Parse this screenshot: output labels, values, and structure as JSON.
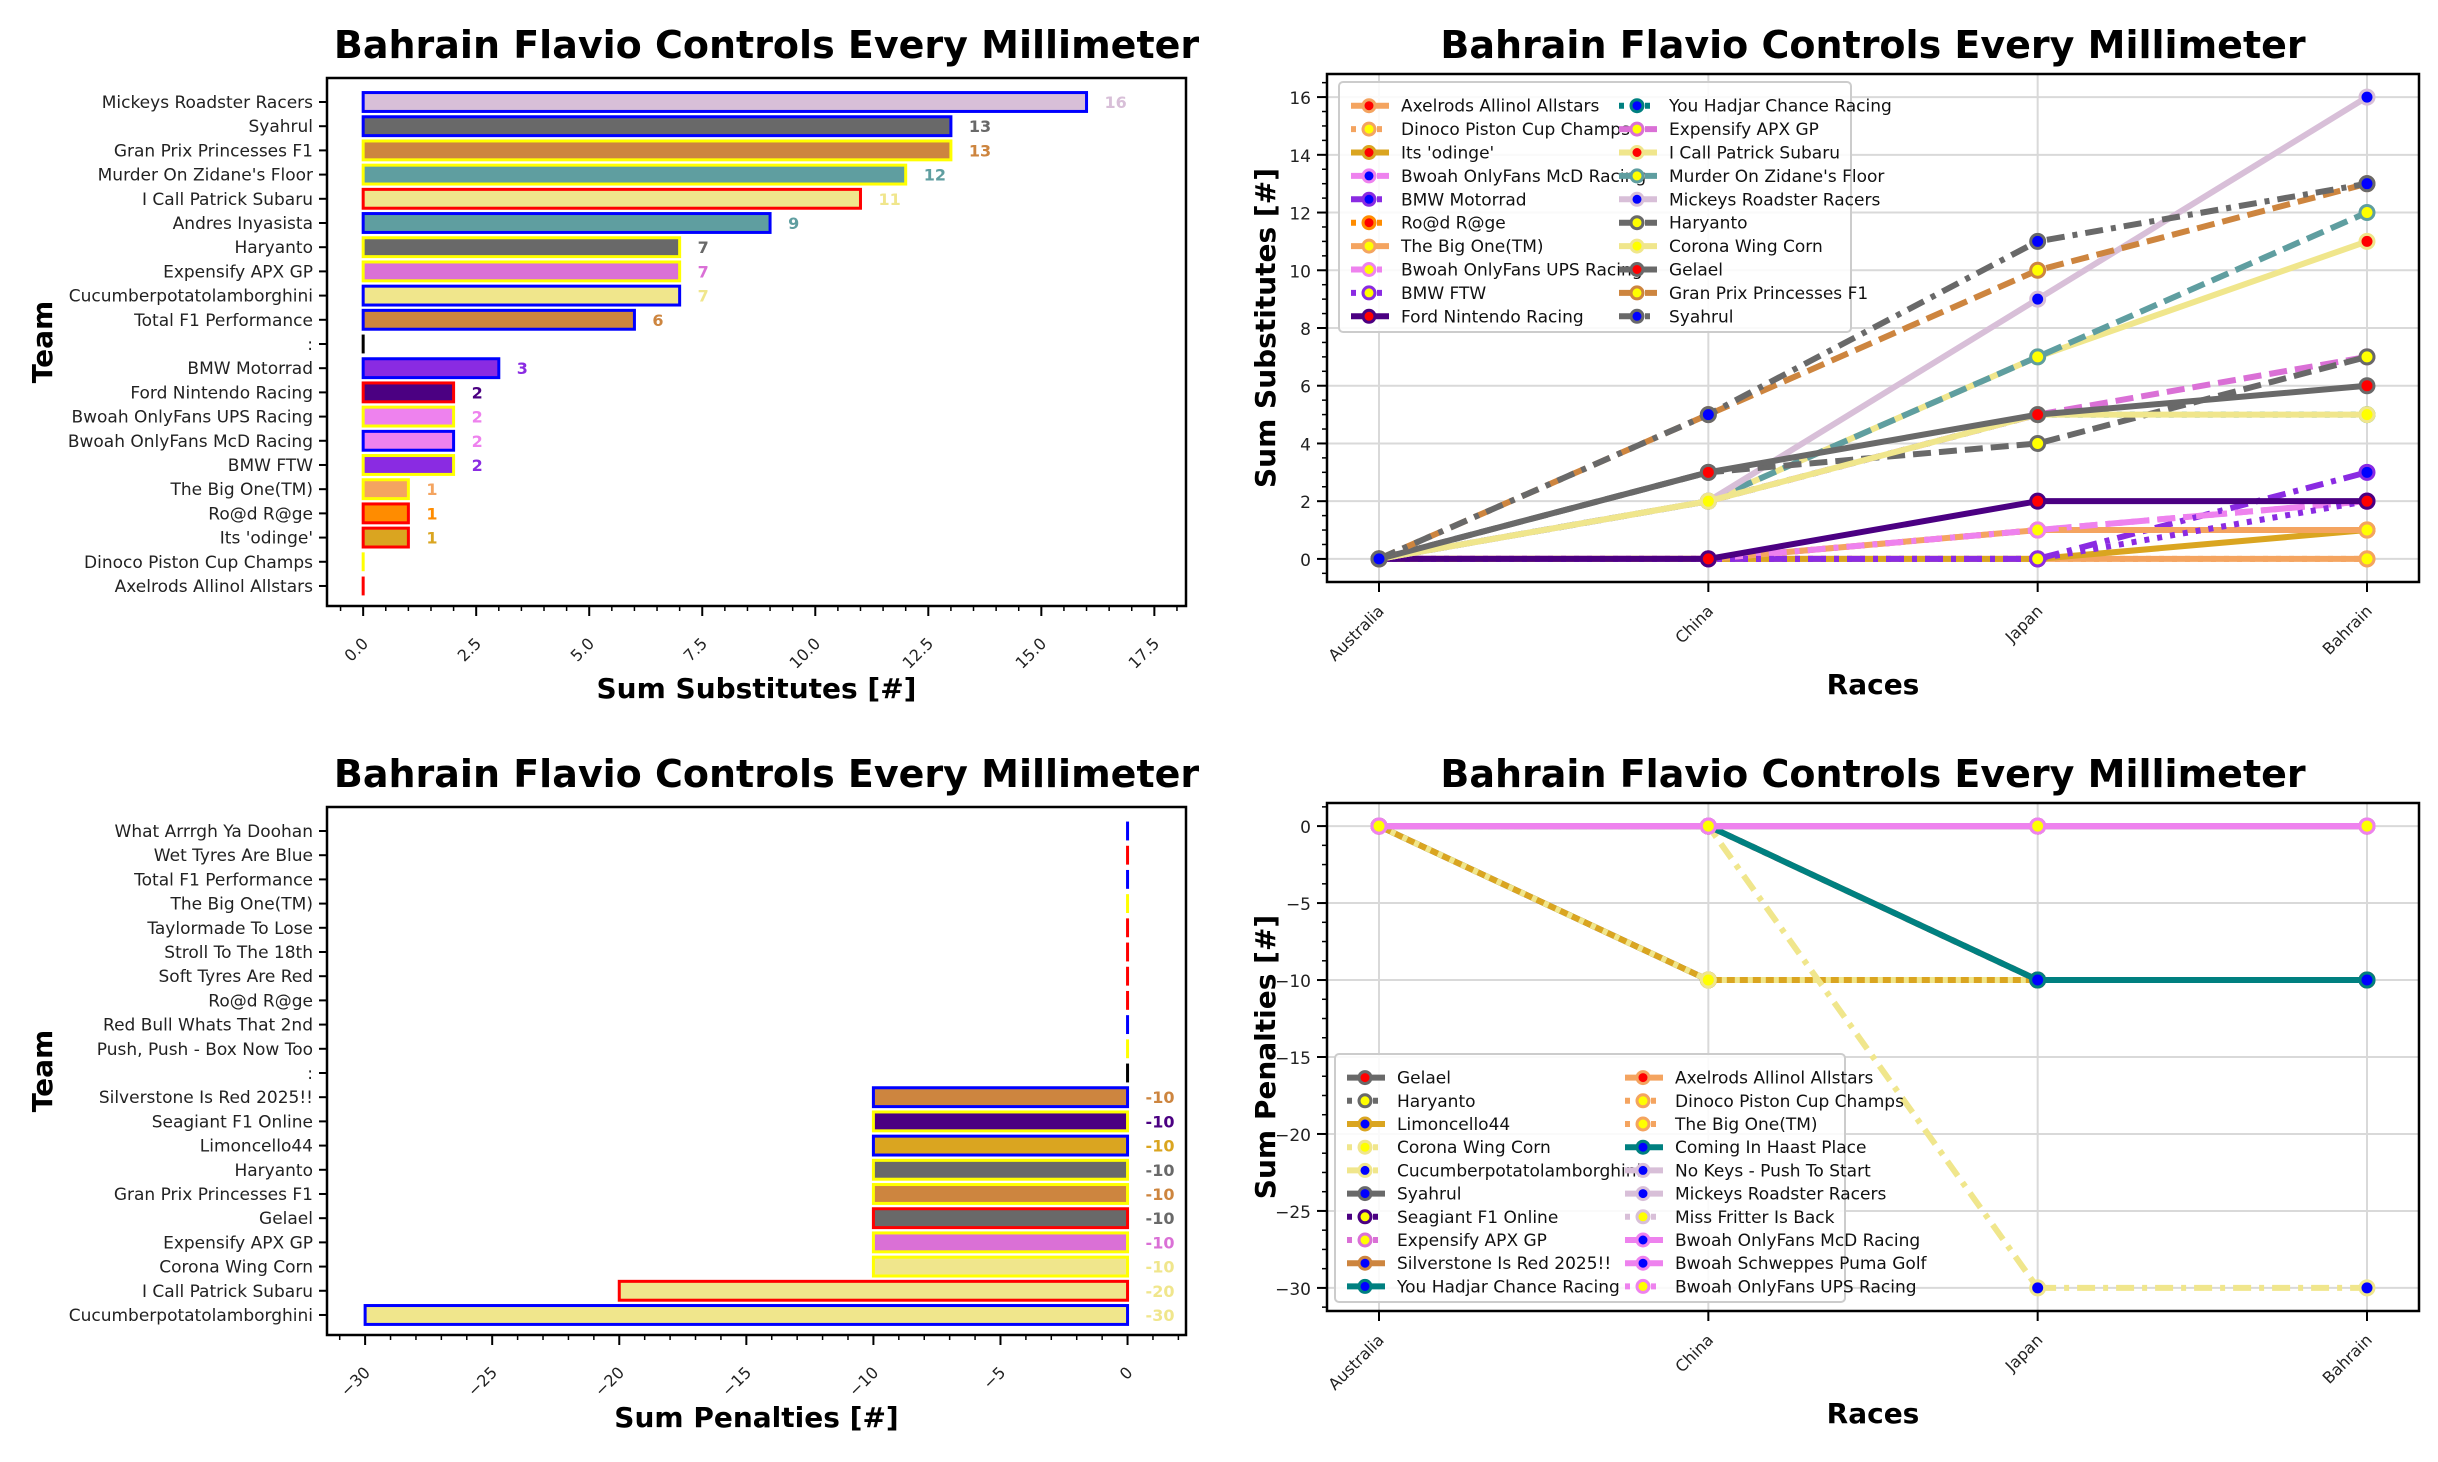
{
  "chart_data": [
    {
      "id": "subs-bar",
      "type": "bar",
      "orientation": "horizontal",
      "title": "Bahrain Flavio Controls Every Millimeter",
      "xlabel": "Sum Substitutes [#]",
      "ylabel": "Team",
      "xlim": [
        -0.8,
        18.2
      ],
      "xticks": [
        "0.0",
        "2.5",
        "5.0",
        "7.5",
        "10.0",
        "12.5",
        "15.0",
        "17.5"
      ],
      "xtick_values": [
        0,
        2.5,
        5,
        7.5,
        10,
        12.5,
        15,
        17.5
      ],
      "bars": [
        {
          "label": "Mickeys Roadster Racers",
          "value": 16,
          "fill": "#d8bfd8",
          "edge": "#0000ff",
          "text": "16"
        },
        {
          "label": "Syahrul",
          "value": 13,
          "fill": "#696969",
          "edge": "#0000ff",
          "text": "13"
        },
        {
          "label": "Gran Prix Princesses F1",
          "value": 13,
          "fill": "#cd853f",
          "edge": "#ffff00",
          "text": "13"
        },
        {
          "label": "Murder On Zidane's Floor",
          "value": 12,
          "fill": "#5f9ea0",
          "edge": "#ffff00",
          "text": "12"
        },
        {
          "label": "I Call Patrick Subaru",
          "value": 11,
          "fill": "#f0e68c",
          "edge": "#ff0000",
          "text": "11"
        },
        {
          "label": "Andres Inyasista",
          "value": 9,
          "fill": "#5f9ea0",
          "edge": "#0000ff",
          "text": "9"
        },
        {
          "label": "Haryanto",
          "value": 7,
          "fill": "#696969",
          "edge": "#ffff00",
          "text": "7"
        },
        {
          "label": "Expensify APX GP",
          "value": 7,
          "fill": "#da70d6",
          "edge": "#ffff00",
          "text": "7"
        },
        {
          "label": "Cucumberpotatolamborghini",
          "value": 7,
          "fill": "#f0e68c",
          "edge": "#0000ff",
          "text": "7"
        },
        {
          "label": "Total F1 Performance",
          "value": 6,
          "fill": "#cd853f",
          "edge": "#0000ff",
          "text": "6"
        },
        {
          "label": ":",
          "value": 0,
          "fill": "#000000",
          "edge": "#000000",
          "text": ""
        },
        {
          "label": "BMW Motorrad",
          "value": 3,
          "fill": "#8a2be2",
          "edge": "#0000ff",
          "text": "3"
        },
        {
          "label": "Ford Nintendo Racing",
          "value": 2,
          "fill": "#4b0082",
          "edge": "#ff0000",
          "text": "2"
        },
        {
          "label": "Bwoah OnlyFans UPS Racing",
          "value": 2,
          "fill": "#ee82ee",
          "edge": "#ffff00",
          "text": "2"
        },
        {
          "label": "Bwoah OnlyFans McD Racing",
          "value": 2,
          "fill": "#ee82ee",
          "edge": "#0000ff",
          "text": "2"
        },
        {
          "label": "BMW FTW",
          "value": 2,
          "fill": "#8a2be2",
          "edge": "#ffff00",
          "text": "2"
        },
        {
          "label": "The Big One(TM)",
          "value": 1,
          "fill": "#f4a460",
          "edge": "#ffff00",
          "text": "1"
        },
        {
          "label": "Ro@d R@ge",
          "value": 1,
          "fill": "#ff8c00",
          "edge": "#ff0000",
          "text": "1"
        },
        {
          "label": "Its 'odinge'",
          "value": 1,
          "fill": "#daa520",
          "edge": "#ff0000",
          "text": "1"
        },
        {
          "label": "Dinoco Piston Cup Champs",
          "value": 0,
          "fill": "#ffff00",
          "edge": "#ffff00",
          "text": ""
        },
        {
          "label": "Axelrods Allinol Allstars",
          "value": 0,
          "fill": "#ff0000",
          "edge": "#ff0000",
          "text": ""
        }
      ]
    },
    {
      "id": "subs-line",
      "type": "line",
      "title": "Bahrain Flavio Controls Every Millimeter",
      "xlabel": "Races",
      "ylabel": "Sum Substitutes [#]",
      "categories": [
        "Australia",
        "China",
        "Japan",
        "Bahrain"
      ],
      "ylim": [
        -0.8,
        16.8
      ],
      "yticks": [
        0,
        2,
        4,
        6,
        8,
        10,
        12,
        14,
        16
      ],
      "grid": true,
      "legend_placement": "upper-left",
      "legend_columns": 2,
      "series": [
        {
          "name": "Axelrods Allinol Allstars",
          "values": [
            0,
            0,
            0,
            0
          ],
          "color": "#f4a460",
          "marker": "#ff0000",
          "dash": "solid"
        },
        {
          "name": "Dinoco Piston Cup Champs",
          "values": [
            0,
            0,
            0,
            0
          ],
          "color": "#f4a460",
          "marker": "#ffff00",
          "dash": "dotted"
        },
        {
          "name": "Its 'odinge'",
          "values": [
            0,
            0,
            0,
            1
          ],
          "color": "#daa520",
          "marker": "#ff0000",
          "dash": "solid"
        },
        {
          "name": "Bwoah OnlyFans McD Racing",
          "values": [
            0,
            0,
            1,
            2
          ],
          "color": "#ee82ee",
          "marker": "#0000ff",
          "dash": "dashed"
        },
        {
          "name": "BMW Motorrad",
          "values": [
            0,
            0,
            0,
            3
          ],
          "color": "#8a2be2",
          "marker": "#0000ff",
          "dash": "dashdot"
        },
        {
          "name": "Ro@d R@ge",
          "values": [
            0,
            0,
            1,
            1
          ],
          "color": "#ff8c00",
          "marker": "#ff0000",
          "dash": "dotted"
        },
        {
          "name": "The Big One(TM)",
          "values": [
            0,
            0,
            1,
            1
          ],
          "color": "#f4a460",
          "marker": "#ffff00",
          "dash": "solid"
        },
        {
          "name": "Bwoah OnlyFans UPS Racing",
          "values": [
            0,
            0,
            1,
            2
          ],
          "color": "#ee82ee",
          "marker": "#ffff00",
          "dash": "dashdot"
        },
        {
          "name": "BMW FTW",
          "values": [
            0,
            0,
            0,
            2
          ],
          "color": "#8a2be2",
          "marker": "#ffff00",
          "dash": "dotted"
        },
        {
          "name": "Ford Nintendo Racing",
          "values": [
            0,
            0,
            2,
            2
          ],
          "color": "#4b0082",
          "marker": "#ff0000",
          "dash": "solid"
        },
        {
          "name": "You Hadjar Chance Racing",
          "values": [
            0,
            2,
            5,
            5
          ],
          "color": "#008080",
          "marker": "#0000ff",
          "dash": "dotted"
        },
        {
          "name": "Expensify APX GP",
          "values": [
            0,
            2,
            5,
            7
          ],
          "color": "#da70d6",
          "marker": "#ffff00",
          "dash": "dashed"
        },
        {
          "name": "I Call Patrick Subaru",
          "values": [
            0,
            2,
            7,
            11
          ],
          "color": "#f0e68c",
          "marker": "#ff0000",
          "dash": "solid"
        },
        {
          "name": "Murder On Zidane's Floor",
          "values": [
            0,
            2,
            7,
            12
          ],
          "color": "#5f9ea0",
          "marker": "#ffff00",
          "dash": "dashed"
        },
        {
          "name": "Mickeys Roadster Racers",
          "values": [
            0,
            2,
            9,
            16
          ],
          "color": "#d8bfd8",
          "marker": "#0000ff",
          "dash": "solid"
        },
        {
          "name": "Haryanto",
          "values": [
            0,
            3,
            4,
            7
          ],
          "color": "#696969",
          "marker": "#ffff00",
          "dash": "dashed"
        },
        {
          "name": "Corona Wing Corn",
          "values": [
            0,
            2,
            5,
            5
          ],
          "color": "#f0e68c",
          "marker": "#ffff00",
          "dash": "solid"
        },
        {
          "name": "Gelael",
          "values": [
            0,
            3,
            5,
            6
          ],
          "color": "#696969",
          "marker": "#ff0000",
          "dash": "solid"
        },
        {
          "name": "Gran Prix Princesses F1",
          "values": [
            0,
            5,
            10,
            13
          ],
          "color": "#cd853f",
          "marker": "#ffff00",
          "dash": "dashed"
        },
        {
          "name": "Syahrul",
          "values": [
            0,
            5,
            11,
            13
          ],
          "color": "#696969",
          "marker": "#0000ff",
          "dash": "dashdot"
        }
      ]
    },
    {
      "id": "pen-bar",
      "type": "bar",
      "orientation": "horizontal",
      "title": "Bahrain Flavio Controls Every Millimeter",
      "xlabel": "Sum Penalties [#]",
      "ylabel": "Team",
      "xlim": [
        -31.5,
        2.3
      ],
      "xticks": [
        "−30",
        "−25",
        "−20",
        "−15",
        "−10",
        "−5",
        "0"
      ],
      "xtick_values": [
        -30,
        -25,
        -20,
        -15,
        -10,
        -5,
        0
      ],
      "bars": [
        {
          "label": "What Arrrgh Ya Doohan",
          "value": 0,
          "fill": "#0000ff",
          "edge": "#0000ff",
          "text": ""
        },
        {
          "label": "Wet Tyres Are Blue",
          "value": 0,
          "fill": "#ff0000",
          "edge": "#ff0000",
          "text": ""
        },
        {
          "label": "Total F1 Performance",
          "value": 0,
          "fill": "#0000ff",
          "edge": "#0000ff",
          "text": ""
        },
        {
          "label": "The Big One(TM)",
          "value": 0,
          "fill": "#ffff00",
          "edge": "#ffff00",
          "text": ""
        },
        {
          "label": "Taylormade To Lose",
          "value": 0,
          "fill": "#ff0000",
          "edge": "#ff0000",
          "text": ""
        },
        {
          "label": "Stroll To The 18th",
          "value": 0,
          "fill": "#ff0000",
          "edge": "#ff0000",
          "text": ""
        },
        {
          "label": "Soft Tyres Are Red",
          "value": 0,
          "fill": "#ff0000",
          "edge": "#ff0000",
          "text": ""
        },
        {
          "label": "Ro@d R@ge",
          "value": 0,
          "fill": "#ff0000",
          "edge": "#ff0000",
          "text": ""
        },
        {
          "label": "Red Bull Whats That 2nd",
          "value": 0,
          "fill": "#0000ff",
          "edge": "#0000ff",
          "text": ""
        },
        {
          "label": "Push, Push - Box Now Too",
          "value": 0,
          "fill": "#ffff00",
          "edge": "#ffff00",
          "text": ""
        },
        {
          "label": ":",
          "value": 0,
          "fill": "#000000",
          "edge": "#000000",
          "text": ""
        },
        {
          "label": "Silverstone Is Red 2025!!",
          "value": -10,
          "fill": "#cd853f",
          "edge": "#0000ff",
          "text": "-10"
        },
        {
          "label": "Seagiant F1 Online",
          "value": -10,
          "fill": "#4b0082",
          "edge": "#ffff00",
          "text": "-10"
        },
        {
          "label": "Limoncello44",
          "value": -10,
          "fill": "#daa520",
          "edge": "#0000ff",
          "text": "-10"
        },
        {
          "label": "Haryanto",
          "value": -10,
          "fill": "#696969",
          "edge": "#ffff00",
          "text": "-10"
        },
        {
          "label": "Gran Prix Princesses F1",
          "value": -10,
          "fill": "#cd853f",
          "edge": "#ffff00",
          "text": "-10"
        },
        {
          "label": "Gelael",
          "value": -10,
          "fill": "#696969",
          "edge": "#ff0000",
          "text": "-10"
        },
        {
          "label": "Expensify APX GP",
          "value": -10,
          "fill": "#da70d6",
          "edge": "#ffff00",
          "text": "-10"
        },
        {
          "label": "Corona Wing Corn",
          "value": -10,
          "fill": "#f0e68c",
          "edge": "#ffff00",
          "text": "-10"
        },
        {
          "label": "I Call Patrick Subaru",
          "value": -20,
          "fill": "#f0e68c",
          "edge": "#ff0000",
          "text": "-20"
        },
        {
          "label": "Cucumberpotatolamborghini",
          "value": -30,
          "fill": "#f0e68c",
          "edge": "#0000ff",
          "text": "-30"
        }
      ]
    },
    {
      "id": "pen-line",
      "type": "line",
      "title": "Bahrain Flavio Controls Every Millimeter",
      "xlabel": "Races",
      "ylabel": "Sum Penalties [#]",
      "categories": [
        "Australia",
        "China",
        "Japan",
        "Bahrain"
      ],
      "ylim": [
        -31.5,
        1.5
      ],
      "yticks": [
        0,
        -5,
        -10,
        -15,
        -20,
        -25,
        -30
      ],
      "ytick_labels": [
        "0",
        "−5",
        "−10",
        "−15",
        "−20",
        "−25",
        "−30"
      ],
      "grid": true,
      "legend_placement": "lower-left",
      "legend_columns": 2,
      "series": [
        {
          "name": "Gelael",
          "values": [
            0,
            -10,
            -10,
            -10
          ],
          "color": "#696969",
          "marker": "#ff0000",
          "dash": "solid"
        },
        {
          "name": "Haryanto",
          "values": [
            0,
            -10,
            -10,
            -10
          ],
          "color": "#696969",
          "marker": "#ffff00",
          "dash": "dotted"
        },
        {
          "name": "Limoncello44",
          "values": [
            0,
            -10,
            -10,
            -10
          ],
          "color": "#daa520",
          "marker": "#0000ff",
          "dash": "solid"
        },
        {
          "name": "Corona Wing Corn",
          "values": [
            0,
            -10,
            -10,
            -10
          ],
          "color": "#f0e68c",
          "marker": "#ffff00",
          "dash": "dotted"
        },
        {
          "name": "Cucumberpotatolamborghini",
          "values": [
            0,
            0,
            -30,
            -30
          ],
          "color": "#f0e68c",
          "marker": "#0000ff",
          "dash": "dashdot"
        },
        {
          "name": "Syahrul",
          "values": [
            0,
            0,
            0,
            0
          ],
          "color": "#696969",
          "marker": "#0000ff",
          "dash": "solid"
        },
        {
          "name": "Seagiant F1 Online",
          "values": [
            0,
            0,
            -10,
            -10
          ],
          "color": "#4b0082",
          "marker": "#ffff00",
          "dash": "dotted"
        },
        {
          "name": "Expensify APX GP",
          "values": [
            0,
            0,
            -10,
            -10
          ],
          "color": "#da70d6",
          "marker": "#ffff00",
          "dash": "dotted"
        },
        {
          "name": "Silverstone Is Red 2025!!",
          "values": [
            0,
            0,
            -10,
            -10
          ],
          "color": "#cd853f",
          "marker": "#0000ff",
          "dash": "solid"
        },
        {
          "name": "You Hadjar Chance Racing",
          "values": [
            0,
            0,
            -10,
            -10
          ],
          "color": "#008080",
          "marker": "#0000ff",
          "dash": "solid"
        },
        {
          "name": "Axelrods Allinol Allstars",
          "values": [
            0,
            0,
            0,
            0
          ],
          "color": "#f4a460",
          "marker": "#ff0000",
          "dash": "solid"
        },
        {
          "name": "Dinoco Piston Cup Champs",
          "values": [
            0,
            0,
            0,
            0
          ],
          "color": "#f4a460",
          "marker": "#ffff00",
          "dash": "dotted"
        },
        {
          "name": "The Big One(TM)",
          "values": [
            0,
            0,
            0,
            0
          ],
          "color": "#f4a460",
          "marker": "#ffff00",
          "dash": "dotted"
        },
        {
          "name": "Coming In Haast Place",
          "values": [
            0,
            0,
            0,
            0
          ],
          "color": "#008080",
          "marker": "#0000ff",
          "dash": "solid"
        },
        {
          "name": "No Keys - Push To Start",
          "values": [
            0,
            0,
            0,
            0
          ],
          "color": "#d8bfd8",
          "marker": "#0000ff",
          "dash": "solid"
        },
        {
          "name": "Mickeys Roadster Racers",
          "values": [
            0,
            0,
            0,
            0
          ],
          "color": "#d8bfd8",
          "marker": "#0000ff",
          "dash": "solid"
        },
        {
          "name": "Miss Fritter Is Back",
          "values": [
            0,
            0,
            0,
            0
          ],
          "color": "#d8bfd8",
          "marker": "#ffff00",
          "dash": "dotted"
        },
        {
          "name": "Bwoah OnlyFans McD Racing",
          "values": [
            0,
            0,
            0,
            0
          ],
          "color": "#ee82ee",
          "marker": "#0000ff",
          "dash": "solid"
        },
        {
          "name": "Bwoah Schweppes Puma Golf",
          "values": [
            0,
            0,
            0,
            0
          ],
          "color": "#ee82ee",
          "marker": "#0000ff",
          "dash": "solid"
        },
        {
          "name": "Bwoah OnlyFans UPS Racing",
          "values": [
            0,
            0,
            0,
            0
          ],
          "color": "#ee82ee",
          "marker": "#ffff00",
          "dash": "dotted"
        }
      ]
    }
  ]
}
